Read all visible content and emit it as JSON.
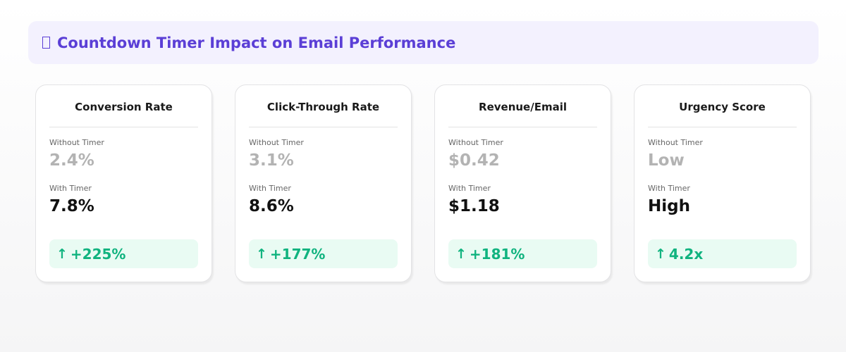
{
  "header": {
    "title": "Countdown Timer Impact on Email Performance",
    "icon": "timer-icon"
  },
  "colors": {
    "accent": "#5b3fd6",
    "banner_bg": "#f3f1fe",
    "positive": "#10b37f",
    "positive_bg": "#e9fbf3",
    "muted_value": "#b3b3b3"
  },
  "cards": [
    {
      "title": "Conversion Rate",
      "without_label": "Without Timer",
      "without_value": "2.4%",
      "with_label": "With Timer",
      "with_value": "7.8%",
      "delta_icon": "arrow-up-icon",
      "delta": "+225%"
    },
    {
      "title": "Click-Through Rate",
      "without_label": "Without Timer",
      "without_value": "3.1%",
      "with_label": "With Timer",
      "with_value": "8.6%",
      "delta_icon": "arrow-up-icon",
      "delta": "+177%"
    },
    {
      "title": "Revenue/Email",
      "without_label": "Without Timer",
      "without_value": "$0.42",
      "with_label": "With Timer",
      "with_value": "$1.18",
      "delta_icon": "arrow-up-icon",
      "delta": "+181%"
    },
    {
      "title": "Urgency Score",
      "without_label": "Without Timer",
      "without_value": "Low",
      "with_label": "With Timer",
      "with_value": "High",
      "delta_icon": "arrow-up-icon",
      "delta": "4.2x"
    }
  ]
}
